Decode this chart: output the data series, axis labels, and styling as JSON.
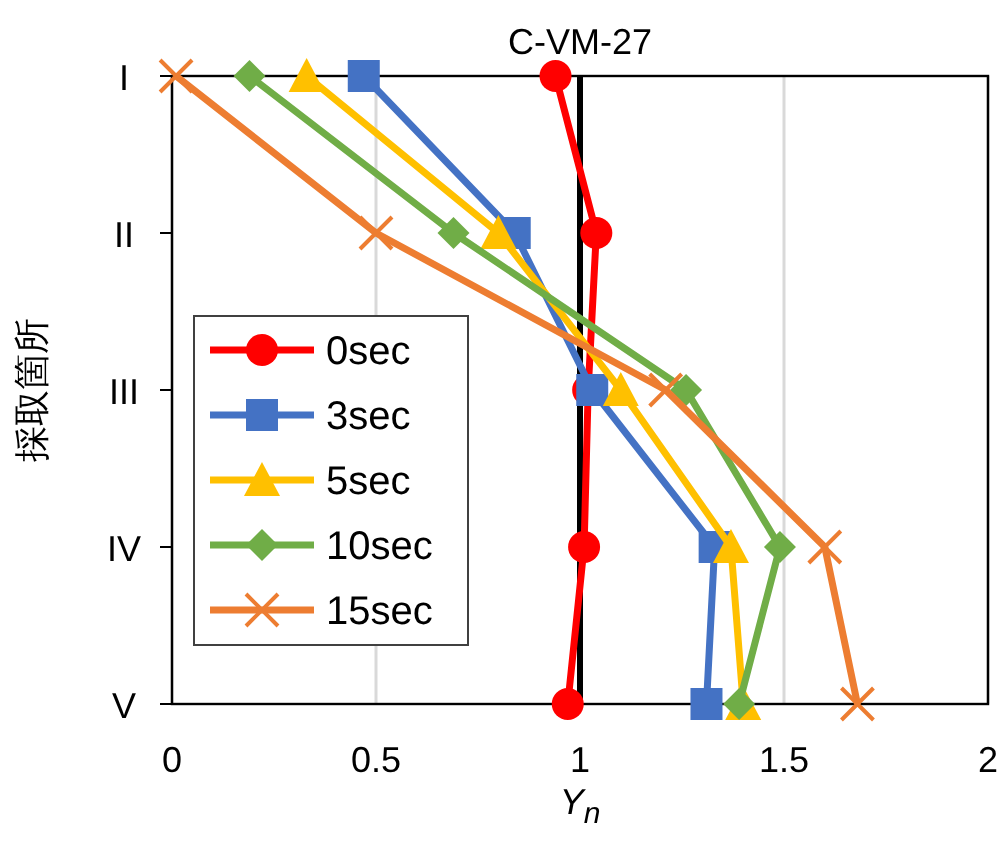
{
  "chart_data": {
    "type": "line",
    "title": "C-VM-27",
    "xlabel": "Y$_{n}$",
    "ylabel": "採取箇所",
    "orientation": "horizontal",
    "categories": [
      "I",
      "II",
      "III",
      "IV",
      "V"
    ],
    "xlim": [
      0,
      2
    ],
    "xticks": [
      0,
      0.5,
      1,
      1.5,
      2
    ],
    "grid": "x",
    "legend": "left",
    "ref_lines": [
      {
        "axis": "x",
        "value": 1,
        "color": "#000000"
      }
    ],
    "series": [
      {
        "name": "0sec",
        "color": "#ff0000",
        "marker": "circle",
        "values": [
          0.94,
          1.04,
          1.02,
          1.01,
          0.97
        ]
      },
      {
        "name": "3sec",
        "color": "#4472c4",
        "marker": "square",
        "values": [
          0.47,
          0.84,
          1.03,
          1.33,
          1.31
        ]
      },
      {
        "name": "5sec",
        "color": "#ffc000",
        "marker": "triangle",
        "values": [
          0.33,
          0.8,
          1.1,
          1.37,
          1.4
        ]
      },
      {
        "name": "10sec",
        "color": "#70ad47",
        "marker": "diamond",
        "values": [
          0.19,
          0.69,
          1.26,
          1.49,
          1.39
        ]
      },
      {
        "name": "15sec",
        "color": "#ed7d31",
        "marker": "cross",
        "values": [
          0.01,
          0.5,
          1.21,
          1.6,
          1.68
        ]
      }
    ]
  }
}
